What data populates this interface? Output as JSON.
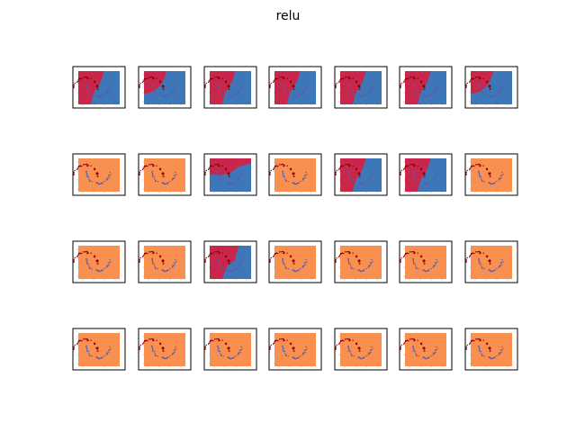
{
  "chart_data": {
    "type": "grid-of-decision-boundaries",
    "title": "relu",
    "rows": 4,
    "cols": 7,
    "region_colors": {
      "red": "#c8264a",
      "blue": "#3d77b8",
      "orange": "#f9904f"
    },
    "point_colors": {
      "class0": "#8b0000",
      "class1": "#5a5aa8"
    },
    "panels": [
      [
        "red-blue-a",
        "red-blue-b",
        "red-blue-a",
        "red-blue-a",
        "red-blue-a",
        "red-blue-a",
        "red-blue-b"
      ],
      [
        "orange",
        "orange",
        "red-blue-c",
        "orange",
        "red-blue-a",
        "red-blue-a",
        "orange"
      ],
      [
        "orange",
        "orange",
        "red-blue-d",
        "orange",
        "orange",
        "orange",
        "orange"
      ],
      [
        "orange",
        "orange",
        "orange",
        "orange",
        "orange",
        "orange",
        "orange"
      ]
    ]
  }
}
